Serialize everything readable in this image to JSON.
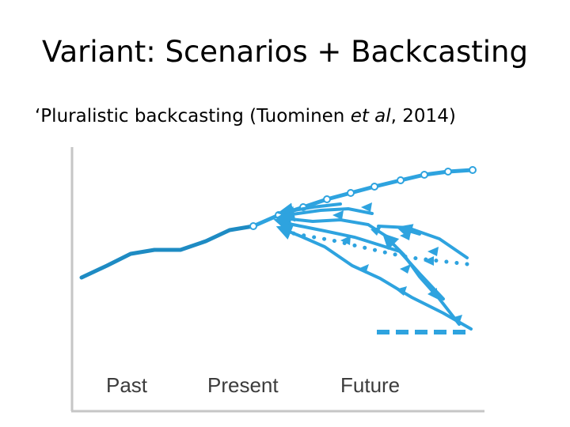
{
  "slide": {
    "title": "Variant: Scenarios + Backcasting",
    "subtitle_start": "‘Pluralistic backcasting (Tuominen ",
    "subtitle_italic": "et al",
    "subtitle_end": ", 2014)"
  },
  "diagram": {
    "labels": {
      "past": "Past",
      "present": "Present",
      "future": "Future"
    },
    "colors": {
      "line": "#1e8bc3",
      "line_light": "#2ea3df",
      "axis": "#c6c6c6"
    }
  }
}
